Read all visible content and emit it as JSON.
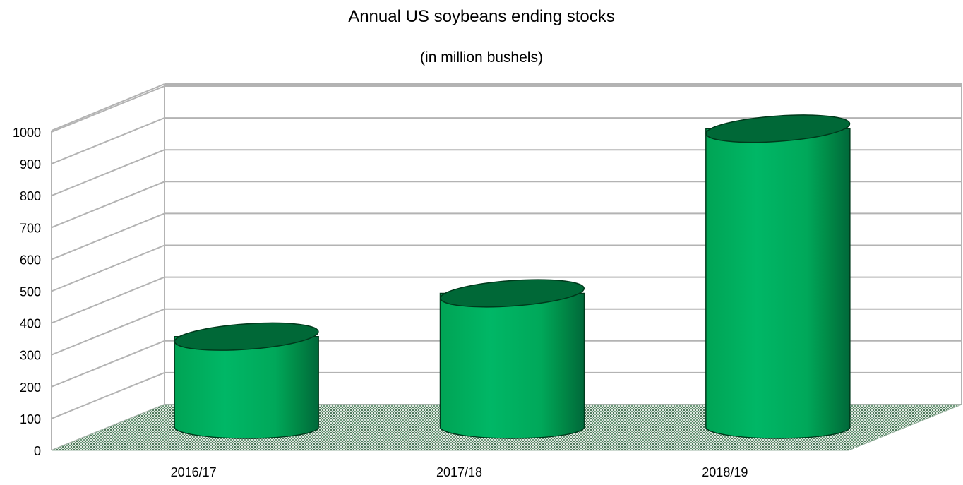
{
  "chart_data": {
    "type": "bar",
    "title": "Annual US soybeans ending stocks",
    "subtitle": "(in million bushels)",
    "categories": [
      "2016/17",
      "2017/18",
      "2018/19"
    ],
    "values": [
      302,
      438,
      955
    ],
    "xlabel": "",
    "ylabel": "",
    "ylim": [
      0,
      1000
    ],
    "yticks": [
      "0",
      "100",
      "200",
      "300",
      "400",
      "500",
      "600",
      "700",
      "800",
      "900",
      "1000"
    ],
    "grid": true,
    "legend": "none",
    "bar_shape": "3d-cylinder",
    "colors": {
      "bar_body": "#00b060",
      "bar_top": "#006837",
      "bar_shade": "#00703a",
      "grid": "#b3b3b3",
      "floor": "#4f7a5c"
    }
  }
}
